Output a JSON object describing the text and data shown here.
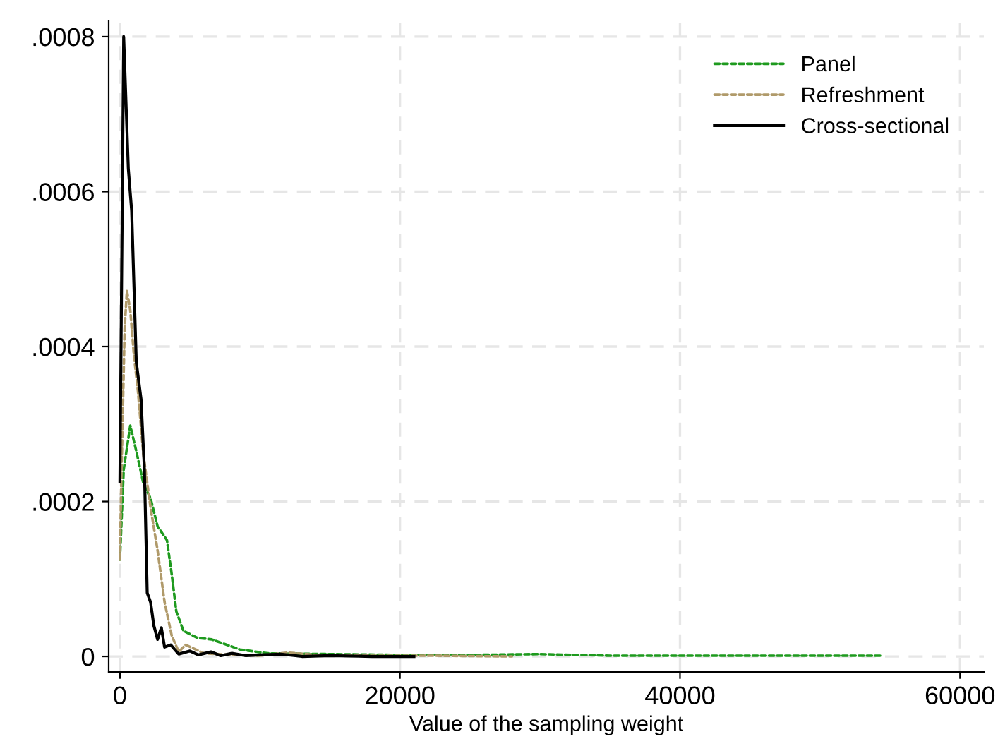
{
  "chart_data": {
    "type": "line",
    "xlabel": "Value of the sampling weight",
    "xlim": [
      -800,
      61700
    ],
    "ylim": [
      -2e-05,
      0.00082
    ],
    "xticks": [
      0,
      20000,
      40000,
      60000
    ],
    "yticks": [
      {
        "value": 0,
        "label": "0"
      },
      {
        "value": 0.0002,
        "label": ".0002"
      },
      {
        "value": 0.0004,
        "label": ".0004"
      },
      {
        "value": 0.0006,
        "label": ".0006"
      },
      {
        "value": 0.0008,
        "label": ".0008"
      }
    ],
    "grid": true,
    "legend": "top right",
    "series": [
      {
        "name": "Panel",
        "color": "#1e9a1e",
        "line_style": "dashed",
        "x": [
          0,
          270,
          740,
          1170,
          1680,
          2190,
          2690,
          3360,
          3700,
          4030,
          4540,
          5540,
          6550,
          8570,
          10580,
          15000,
          20000,
          25000,
          30000,
          35000,
          40000,
          45000,
          50000,
          54500
        ],
        "values": [
          0.000125,
          0.000241,
          0.000298,
          0.000265,
          0.000223,
          0.000204,
          0.000168,
          0.00015,
          0.000106,
          5.8e-05,
          3.3e-05,
          2.4e-05,
          2.2e-05,
          9e-06,
          4e-06,
          3e-06,
          2e-06,
          2e-06,
          3e-06,
          1e-06,
          1e-06,
          1e-06,
          1e-06,
          1e-06
        ]
      },
      {
        "name": "Refreshment",
        "color": "#b09a6a",
        "line_style": "dashed",
        "x": [
          0,
          100,
          340,
          500,
          740,
          1010,
          1280,
          1680,
          2190,
          2690,
          3190,
          3700,
          4200,
          4700,
          6000,
          8000,
          10000,
          12000,
          14000,
          18000,
          22000,
          28000
        ],
        "values": [
          0.000125,
          0.000228,
          0.000424,
          0.000472,
          0.000447,
          0.000387,
          0.000344,
          0.00026,
          0.000192,
          0.000137,
          7e-05,
          2.7e-05,
          6e-06,
          1.5e-05,
          4e-06,
          2e-06,
          1e-06,
          5e-06,
          2e-06,
          1e-06,
          1e-06,
          0.0
        ]
      },
      {
        "name": "Cross-sectional",
        "color": "#000000",
        "line_style": "solid",
        "x": [
          0,
          270,
          600,
          840,
          1170,
          1510,
          1750,
          1950,
          2190,
          2420,
          2690,
          2960,
          3190,
          3630,
          4200,
          5000,
          5600,
          6500,
          7200,
          8000,
          9000,
          10000,
          11500,
          13000,
          15000,
          18000,
          21000
        ],
        "values": [
          0.000226,
          0.0008,
          0.00063,
          0.000575,
          0.00038,
          0.000332,
          0.000241,
          8.2e-05,
          7e-05,
          4e-05,
          2.2e-05,
          3.7e-05,
          1.2e-05,
          1.5e-05,
          3e-06,
          7e-06,
          2e-06,
          6e-06,
          1e-06,
          4e-06,
          1e-06,
          2e-06,
          3e-06,
          0.0,
          1e-06,
          0.0,
          0.0
        ]
      }
    ]
  }
}
